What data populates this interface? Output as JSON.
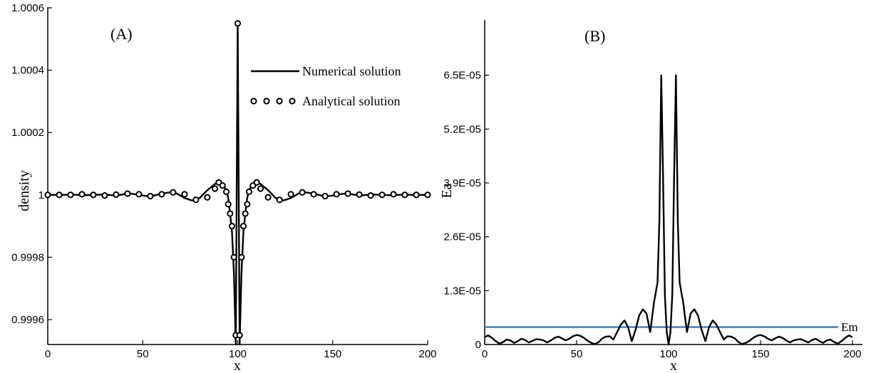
{
  "chart_data": [
    {
      "type": "line",
      "panel_label": "(A)",
      "xlabel": "x",
      "ylabel": "density",
      "xlim": [
        0,
        200
      ],
      "ylim": [
        0.99952,
        1.0006
      ],
      "x_ticks": [
        "0",
        "50",
        "100",
        "150",
        "200"
      ],
      "y_ticks": [
        {
          "value": 0.9996,
          "label": "0.9996"
        },
        {
          "value": 0.9998,
          "label": "0.9998"
        },
        {
          "value": 1.0,
          "label": "1"
        },
        {
          "value": 1.0002,
          "label": "1.0002"
        },
        {
          "value": 1.0004,
          "label": "1.0004"
        },
        {
          "value": 1.0006,
          "label": "1.0006"
        }
      ],
      "legend_position": "top-right",
      "series": [
        {
          "name": "Numerical solution",
          "style": "solid-line",
          "x": [
            0,
            4,
            8,
            12,
            16,
            20,
            24,
            28,
            32,
            36,
            40,
            44,
            48,
            52,
            56,
            60,
            64,
            68,
            72,
            76,
            80,
            84,
            88,
            90,
            92,
            94,
            95,
            96,
            97,
            98,
            99,
            100,
            101,
            102,
            103,
            104,
            105,
            106,
            108,
            110,
            112,
            116,
            120,
            124,
            128,
            132,
            136,
            140,
            144,
            148,
            152,
            156,
            160,
            164,
            168,
            172,
            176,
            180,
            184,
            188,
            192,
            196,
            200
          ],
          "y": [
            1.0,
            1.0,
            1.0,
            1.000001,
            1.0,
            0.999999,
            1.0,
            1.000001,
            1.0,
            0.999998,
            1.000002,
            1.000004,
            1.0,
            0.999996,
            0.999998,
            1.000004,
            1.000008,
            1.000004,
            0.99999,
            0.999982,
            0.99999,
            1.000015,
            1.000035,
            1.00004,
            1.000035,
            1.000015,
            0.99999,
            0.99994,
            0.99988,
            0.99975,
            0.99952,
            1.00055,
            0.99952,
            0.99975,
            0.99988,
            0.99994,
            0.99999,
            1.000015,
            1.000035,
            1.00004,
            1.000035,
            1.000015,
            0.99999,
            0.999982,
            0.99999,
            1.000004,
            1.000008,
            1.000004,
            0.999998,
            0.999996,
            1.0,
            1.000004,
            1.000002,
            0.999998,
            1.0,
            1.000001,
            1.0,
            0.999999,
            1.0,
            1.000001,
            1.0,
            1.0,
            1.0
          ]
        },
        {
          "name": "Analytical solution",
          "style": "open-circles",
          "x": [
            0,
            6,
            12,
            18,
            24,
            30,
            36,
            42,
            48,
            54,
            60,
            66,
            72,
            78,
            84,
            88,
            90,
            92,
            94,
            95,
            96,
            97,
            98,
            99,
            100,
            101,
            102,
            103,
            104,
            105,
            106,
            108,
            110,
            112,
            116,
            122,
            128,
            134,
            140,
            146,
            152,
            158,
            164,
            170,
            176,
            182,
            188,
            194,
            200
          ],
          "y": [
            1.0,
            1.0,
            1.0,
            1.000002,
            1.0,
            0.999998,
            1.000001,
            1.000004,
            1.000002,
            0.999996,
            1.000002,
            1.000008,
            1.000002,
            0.999984,
            0.999992,
            1.00002,
            1.00004,
            1.00003,
            1.00001,
            0.99997,
            0.99994,
            0.9999,
            0.9998,
            0.99955,
            1.00055,
            0.99955,
            0.9998,
            0.9999,
            0.99994,
            0.99997,
            1.00001,
            1.00003,
            1.00004,
            1.00002,
            0.999992,
            0.999984,
            1.000002,
            1.000008,
            1.000002,
            0.999996,
            1.000002,
            1.000004,
            1.000001,
            0.999998,
            1.0,
            1.000002,
            1.0,
            1.0,
            1.0
          ]
        }
      ]
    },
    {
      "type": "line",
      "panel_label": "(B)",
      "xlabel": "x",
      "ylabel": "Ea",
      "xlim": [
        0,
        200
      ],
      "ylim": [
        0,
        7.8e-05
      ],
      "x_ticks": [
        "0",
        "50",
        "100",
        "150",
        "200"
      ],
      "y_ticks": [
        {
          "value": 0,
          "label": "0"
        },
        {
          "value": 1.3e-05,
          "label": "1.3E-05"
        },
        {
          "value": 2.6e-05,
          "label": "2.6E-05"
        },
        {
          "value": 3.9e-05,
          "label": "3.9E-05"
        },
        {
          "value": 5.2e-05,
          "label": "5.2E-05"
        },
        {
          "value": 6.5e-05,
          "label": "6.5E-05"
        }
      ],
      "series": [
        {
          "name": "",
          "style": "solid-line",
          "x": [
            0,
            2,
            4,
            6,
            8,
            10,
            12,
            14,
            16,
            18,
            20,
            22,
            24,
            26,
            28,
            30,
            32,
            34,
            36,
            38,
            40,
            42,
            44,
            46,
            48,
            50,
            52,
            54,
            56,
            58,
            60,
            62,
            64,
            66,
            68,
            70,
            72,
            74,
            76,
            78,
            80,
            82,
            84,
            86,
            88,
            90,
            92,
            94,
            95,
            96,
            97,
            98,
            99,
            100,
            101,
            102,
            103,
            104,
            105,
            106,
            108,
            110,
            112,
            114,
            116,
            118,
            120,
            122,
            124,
            126,
            128,
            130,
            132,
            134,
            136,
            138,
            140,
            142,
            144,
            146,
            148,
            150,
            152,
            154,
            156,
            158,
            160,
            162,
            164,
            166,
            168,
            170,
            172,
            174,
            176,
            178,
            180,
            182,
            184,
            186,
            188,
            190,
            192,
            194,
            196,
            198,
            200
          ],
          "y": [
            1.8e-06,
            2.2e-06,
            1.6e-06,
            8e-07,
            2e-07,
            6e-07,
            1.2e-06,
            1e-06,
            4e-07,
            8e-07,
            1.4e-06,
            1.1e-06,
            5e-07,
            9e-07,
            1.3e-06,
            1.2e-06,
            1e-06,
            5e-07,
            1e-06,
            1.6e-06,
            1.9e-06,
            1.5e-06,
            1e-06,
            1.4e-06,
            2e-06,
            2.3e-06,
            2.1e-06,
            1.6e-06,
            9e-07,
            4e-07,
            1e-07,
            6e-07,
            1.5e-06,
            1.9e-06,
            2e-06,
            1.2e-06,
            3e-06,
            4.8e-06,
            5.8e-06,
            4.2e-06,
            8e-07,
            3.5e-06,
            7e-06,
            8.5e-06,
            7.5e-06,
            3e-06,
            1e-05,
            1.5e-05,
            3e-05,
            6.5e-05,
            4e-05,
            1.2e-05,
            3e-06,
            0,
            3e-06,
            1.2e-05,
            4e-05,
            6.5e-05,
            3e-05,
            1.5e-05,
            1e-05,
            3e-06,
            7.5e-06,
            8.5e-06,
            7e-06,
            3.5e-06,
            8e-07,
            4.2e-06,
            5.8e-06,
            4.8e-06,
            3e-06,
            1.2e-06,
            2e-06,
            1.9e-06,
            1.5e-06,
            6e-07,
            1e-07,
            4e-07,
            9e-07,
            1.6e-06,
            2.1e-06,
            2.3e-06,
            2e-06,
            1.4e-06,
            1e-06,
            1.5e-06,
            1.9e-06,
            1.6e-06,
            1e-06,
            5e-07,
            1e-06,
            1.2e-06,
            1.3e-06,
            9e-07,
            5e-07,
            1.1e-06,
            1.4e-06,
            8e-07,
            4e-07,
            1e-06,
            1.2e-06,
            6e-07,
            2e-07,
            8e-07,
            1.6e-06,
            2.2e-06,
            1.8e-06
          ]
        }
      ],
      "reference_line": {
        "label": "Em",
        "value": 4.2e-06,
        "color": "#2e86de"
      }
    }
  ]
}
